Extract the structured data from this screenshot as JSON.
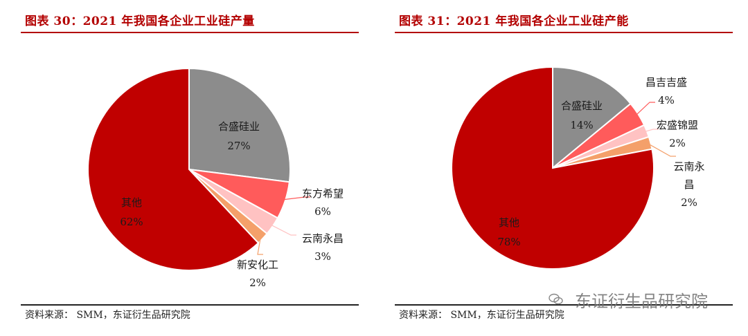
{
  "chart_data": [
    {
      "type": "pie",
      "title": "图表 30：2021 年我国各企业工业硅产量",
      "source": "资料来源：  SMM，东证衍生品研究院",
      "slices": [
        {
          "name": "合盛硅业",
          "value": 27,
          "label": "27%",
          "color": "#8c8c8c",
          "label_mode": "inside"
        },
        {
          "name": "东方希望",
          "value": 6,
          "label": "6%",
          "color": "#ff5b5b",
          "label_mode": "outside"
        },
        {
          "name": "云南永昌",
          "value": 3,
          "label": "3%",
          "color": "#ffc2c2",
          "label_mode": "outside"
        },
        {
          "name": "新安化工",
          "value": 2,
          "label": "2%",
          "color": "#f4a06a",
          "label_mode": "outside"
        },
        {
          "name": "其他",
          "value": 62,
          "label": "62%",
          "color": "#c00000",
          "label_mode": "inside"
        }
      ]
    },
    {
      "type": "pie",
      "title": "图表 31：2021 年我国各企业工业硅产能",
      "source": "资料来源：  SMM，东证衍生品研究院",
      "slices": [
        {
          "name": "合盛硅业",
          "value": 14,
          "label": "14%",
          "color": "#8c8c8c",
          "label_mode": "inside"
        },
        {
          "name": "昌吉吉盛",
          "value": 4,
          "label": "4%",
          "color": "#ff5b5b",
          "label_mode": "outside"
        },
        {
          "name": "宏盛锦盟",
          "value": 2,
          "label": "2%",
          "color": "#ffc2c2",
          "label_mode": "outside"
        },
        {
          "name": "云南永昌",
          "value": 2,
          "label": "2%",
          "color": "#f4a06a",
          "label_mode": "outside"
        },
        {
          "name": "其他",
          "value": 78,
          "label": "78%",
          "color": "#c00000",
          "label_mode": "inside"
        }
      ]
    }
  ],
  "watermark": "东证衍生品研究院"
}
